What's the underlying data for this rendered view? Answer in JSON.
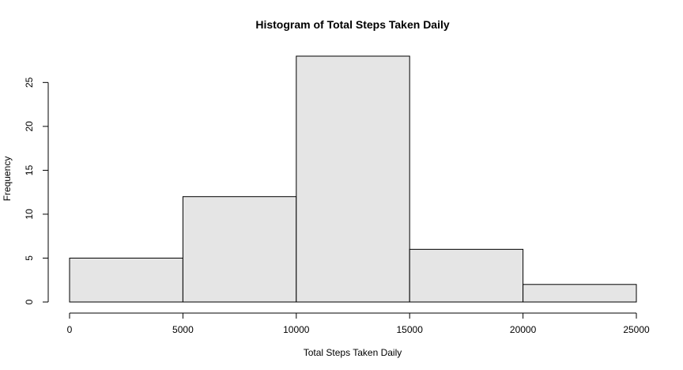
{
  "chart_data": {
    "type": "bar",
    "title": "Histogram of Total Steps Taken Daily",
    "xlabel": "Total Steps Taken Daily",
    "ylabel": "Frequency",
    "bins": [
      {
        "from": 0,
        "to": 5000,
        "count": 5
      },
      {
        "from": 5000,
        "to": 10000,
        "count": 12
      },
      {
        "from": 10000,
        "to": 15000,
        "count": 28
      },
      {
        "from": 15000,
        "to": 20000,
        "count": 6
      },
      {
        "from": 20000,
        "to": 25000,
        "count": 2
      }
    ],
    "xlim": [
      0,
      25000
    ],
    "ylim": [
      0,
      28
    ],
    "xticks": [
      0,
      5000,
      10000,
      15000,
      20000,
      25000
    ],
    "yticks": [
      0,
      5,
      10,
      15,
      20,
      25
    ],
    "grid": false,
    "colors": {
      "bar_fill": "#e5e5e5",
      "bar_stroke": "#000000"
    }
  }
}
